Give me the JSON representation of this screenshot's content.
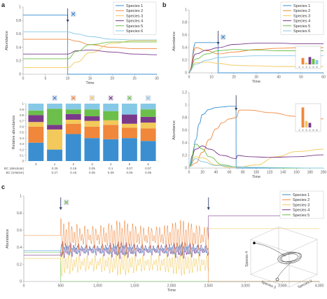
{
  "panel_letters": {
    "a": "a",
    "b": "b",
    "c": "c"
  },
  "colors": {
    "s1": "#3b8fd0",
    "s2": "#f0873a",
    "s3": "#f2c95a",
    "s4": "#7a3a8a",
    "s5": "#6cbf4a",
    "s6": "#86c9e6",
    "axis": "#999999",
    "arrow": "#33446a"
  },
  "chart_data": [
    {
      "id": "a-top",
      "type": "line",
      "xlabel": "Time",
      "ylabel": "Abundance",
      "xlim": [
        0,
        30
      ],
      "ylim": [
        0,
        1
      ],
      "xticks": [
        "0",
        "5",
        "10",
        "15",
        "20",
        "25",
        "30"
      ],
      "yticks": [
        "0",
        "0.2",
        "0.4",
        "0.6",
        "0.8",
        "1"
      ],
      "perturbation_time": 10,
      "legend": [
        "Species 1",
        "Species 2",
        "Species 3",
        "Species 4",
        "Species 5",
        "Species 6"
      ],
      "series": [
        {
          "name": "Species 1",
          "x": [
            0,
            9.99,
            10,
            30
          ],
          "y": [
            0.88,
            0.88,
            0,
            0
          ]
        },
        {
          "name": "Species 2",
          "x": [
            0,
            10,
            12,
            15,
            20,
            25,
            30
          ],
          "y": [
            0.52,
            0.52,
            0.49,
            0.44,
            0.4,
            0.38,
            0.38
          ]
        },
        {
          "name": "Species 3",
          "x": [
            0,
            10,
            12,
            15,
            20,
            25,
            30
          ],
          "y": [
            0.1,
            0.1,
            0.18,
            0.32,
            0.46,
            0.5,
            0.5
          ]
        },
        {
          "name": "Species 4",
          "x": [
            0,
            10,
            12,
            15,
            20,
            25,
            30
          ],
          "y": [
            0.3,
            0.3,
            0.35,
            0.36,
            0.33,
            0.3,
            0.29
          ]
        },
        {
          "name": "Species 5",
          "x": [
            0,
            10,
            12,
            15,
            20,
            25,
            30
          ],
          "y": [
            0.23,
            0.23,
            0.34,
            0.44,
            0.48,
            0.48,
            0.48
          ]
        },
        {
          "name": "Species 6",
          "x": [
            0,
            10,
            12,
            15,
            20,
            25,
            30
          ],
          "y": [
            0.63,
            0.63,
            0.6,
            0.56,
            0.52,
            0.51,
            0.51
          ]
        }
      ]
    },
    {
      "id": "a-bottom",
      "type": "bar",
      "stacked": true,
      "ylabel": "Relative abundance",
      "ylim": [
        0,
        1
      ],
      "yticks": [
        "0",
        "0.1",
        "0.2",
        "0.3",
        "0.4",
        "0.5",
        "0.6",
        "0.7",
        "0.8",
        "0.9",
        "1"
      ],
      "categories": [
        "0",
        "1",
        "2",
        "3",
        "4",
        "5",
        "6"
      ],
      "series": [
        {
          "name": "Species 1",
          "values": [
            0.32,
            0.2,
            0.47,
            0.4,
            0.38,
            0.4,
            0.35
          ]
        },
        {
          "name": "Species 2",
          "values": [
            0.28,
            0.0,
            0.18,
            0.2,
            0.25,
            0.18,
            0.22
          ]
        },
        {
          "name": "Species 3",
          "values": [
            0.08,
            0.35,
            0.07,
            0.1,
            0.08,
            0.07,
            0.1
          ]
        },
        {
          "name": "Species 4",
          "values": [
            0.12,
            0.08,
            0.1,
            0.08,
            0.0,
            0.16,
            0.1
          ]
        },
        {
          "name": "Species 5",
          "values": [
            0.08,
            0.28,
            0.08,
            0.12,
            0.16,
            0.0,
            0.13
          ]
        },
        {
          "name": "Species 6",
          "values": [
            0.12,
            0.09,
            0.1,
            0.1,
            0.13,
            0.19,
            0.1
          ]
        }
      ],
      "removed_species": [
        null,
        1,
        2,
        3,
        4,
        5,
        6
      ],
      "bc_labels": {
        "absolute": "BC (absolute)",
        "relative": "BC (relative)"
      },
      "bc_absolute": [
        "",
        "0.25",
        "0.19",
        "0.05",
        "0.1",
        "0.07",
        "0.07"
      ],
      "bc_relative": [
        "",
        "0.27",
        "0.16",
        "0.05",
        "0.09",
        "0.06",
        "0.08"
      ]
    },
    {
      "id": "b-top",
      "type": "line",
      "xlabel": "Time",
      "ylabel": "Abundance",
      "xlim": [
        0,
        60
      ],
      "ylim": [
        0,
        1
      ],
      "xticks": [
        "0",
        "10",
        "20",
        "30",
        "40",
        "50",
        "60"
      ],
      "yticks": [
        "0",
        "0.2",
        "0.4",
        "0.6",
        "0.8",
        "1"
      ],
      "perturbation_time": 13,
      "legend": [
        "Species 1",
        "Species 2",
        "Species 3",
        "Species 4",
        "Species 5",
        "Species 6"
      ],
      "series": [
        {
          "name": "Species 1",
          "x": [
            0,
            3,
            12.99,
            13,
            60
          ],
          "y": [
            0,
            0.48,
            0.48,
            0,
            0
          ]
        },
        {
          "name": "Species 2",
          "x": [
            0,
            3,
            8,
            13,
            20,
            30,
            40,
            50,
            60
          ],
          "y": [
            0.02,
            0.4,
            0.35,
            0.3,
            0.33,
            0.37,
            0.39,
            0.4,
            0.4
          ]
        },
        {
          "name": "Species 3",
          "x": [
            0,
            3,
            8,
            13,
            20,
            30,
            40,
            50,
            60
          ],
          "y": [
            0.02,
            0.16,
            0.17,
            0.15,
            0.12,
            0.11,
            0.1,
            0.1,
            0.1
          ]
        },
        {
          "name": "Species 4",
          "x": [
            0,
            3,
            8,
            13,
            20,
            30,
            40,
            50,
            60
          ],
          "y": [
            0.02,
            0.3,
            0.36,
            0.4,
            0.45,
            0.47,
            0.47,
            0.46,
            0.46
          ]
        },
        {
          "name": "Species 5",
          "x": [
            0,
            3,
            8,
            13,
            20,
            30,
            40,
            50,
            60
          ],
          "y": [
            0.02,
            0.22,
            0.3,
            0.35,
            0.37,
            0.36,
            0.35,
            0.35,
            0.35
          ]
        },
        {
          "name": "Species 6",
          "x": [
            0,
            3,
            8,
            13,
            20,
            30,
            40,
            50,
            60
          ],
          "y": [
            0.02,
            0.14,
            0.2,
            0.24,
            0.26,
            0.27,
            0.27,
            0.27,
            0.27
          ]
        }
      ],
      "inset": {
        "type": "bar",
        "categories": [
          "1",
          "2",
          "3",
          "4",
          "5",
          "6"
        ],
        "values": [
          0.0,
          0.4,
          0.1,
          0.46,
          0.35,
          0.27
        ]
      }
    },
    {
      "id": "b-bottom",
      "type": "line",
      "xlabel": "Time",
      "ylabel": "Abundance",
      "xlim": [
        0,
        200
      ],
      "ylim": [
        0,
        1.2
      ],
      "xticks": [
        "0",
        "20",
        "40",
        "60",
        "80",
        "100",
        "120",
        "140",
        "160",
        "180",
        "200"
      ],
      "yticks": [
        "0",
        "0.2",
        "0.4",
        "0.6",
        "0.8",
        "1",
        "1.2"
      ],
      "perturbation_time": 70,
      "series": [
        {
          "name": "Species 1",
          "x": [
            0,
            5,
            10,
            15,
            20,
            30,
            40,
            50,
            60,
            69.9,
            70,
            200
          ],
          "y": [
            0.02,
            0.2,
            0.45,
            0.7,
            0.85,
            0.93,
            0.96,
            0.97,
            0.98,
            0.98,
            0,
            0
          ]
        },
        {
          "name": "Species 2",
          "x": [
            0,
            10,
            20,
            30,
            40,
            50,
            60,
            70,
            75,
            90,
            120,
            160,
            200
          ],
          "y": [
            0.02,
            0.08,
            0.25,
            0.45,
            0.62,
            0.72,
            0.78,
            0.8,
            0.92,
            0.92,
            0.88,
            0.82,
            0.78
          ]
        },
        {
          "name": "Species 3",
          "x": [
            0,
            10,
            20,
            40,
            60,
            70,
            100,
            130,
            160,
            200
          ],
          "y": [
            0.02,
            0.18,
            0.16,
            0.05,
            0.01,
            0.01,
            0.05,
            0.18,
            0.26,
            0.3
          ]
        },
        {
          "name": "Species 4",
          "x": [
            0,
            10,
            20,
            30,
            50,
            70,
            72,
            90,
            120,
            160,
            200
          ],
          "y": [
            0.02,
            0.3,
            0.35,
            0.3,
            0.2,
            0.15,
            0.2,
            0.18,
            0.17,
            0.18,
            0.21
          ]
        },
        {
          "name": "Species 5",
          "x": [
            0,
            10,
            20,
            30,
            50,
            70,
            100,
            150,
            200
          ],
          "y": [
            0.02,
            0.38,
            0.3,
            0.18,
            0.05,
            0.02,
            0.01,
            0.0,
            0.0
          ]
        },
        {
          "name": "Species 6",
          "x": [
            0,
            10,
            20,
            40,
            70,
            100,
            200
          ],
          "y": [
            0.02,
            0.15,
            0.1,
            0.04,
            0.02,
            0.01,
            0.0
          ]
        }
      ],
      "inset": {
        "type": "bar",
        "categories": [
          "1",
          "2",
          "3",
          "4",
          "5",
          "6"
        ],
        "values": [
          0.0,
          0.92,
          0.3,
          0.21,
          0.0,
          0.0
        ]
      }
    },
    {
      "id": "c-main",
      "type": "line",
      "xlabel": "Time",
      "ylabel": "Abundance",
      "xlim": [
        0,
        4000
      ],
      "ylim": [
        0,
        1
      ],
      "xticks": [
        "0",
        "500",
        "1,000",
        "1,500",
        "2,000",
        "2,500",
        "3,000",
        "3,500",
        "4,000"
      ],
      "yticks": [
        "0",
        "0.2",
        "0.4",
        "0.6",
        "0.8",
        "1"
      ],
      "perturbation_times": [
        500,
        2500
      ],
      "oscillation_window": [
        500,
        2500
      ],
      "legend": [
        "Species 1",
        "Species 2",
        "Species 3",
        "Species 4",
        "Species 5"
      ],
      "series": [
        {
          "name": "Species 1",
          "baseline": 0.36,
          "osc_mean": 0.37,
          "osc_amp": 0.05,
          "after": 0.0
        },
        {
          "name": "Species 2",
          "baseline": 0.54,
          "osc_mean": 0.52,
          "osc_amp": 0.17,
          "after": 0.0
        },
        {
          "name": "Species 3",
          "baseline": 0.27,
          "osc_mean": 0.21,
          "osc_amp": 0.12,
          "after": 0.62
        },
        {
          "name": "Species 4",
          "baseline": 0.31,
          "osc_mean": 0.37,
          "osc_amp": 0.08,
          "after": 0.77
        },
        {
          "name": "Species 5",
          "baseline": 0.34,
          "osc_mean": 0.0,
          "osc_amp": 0.0,
          "after": 0.0
        }
      ],
      "phase_inset": {
        "axis_labels": [
          "Species 4",
          "Species 3",
          "Species 2"
        ]
      }
    }
  ]
}
